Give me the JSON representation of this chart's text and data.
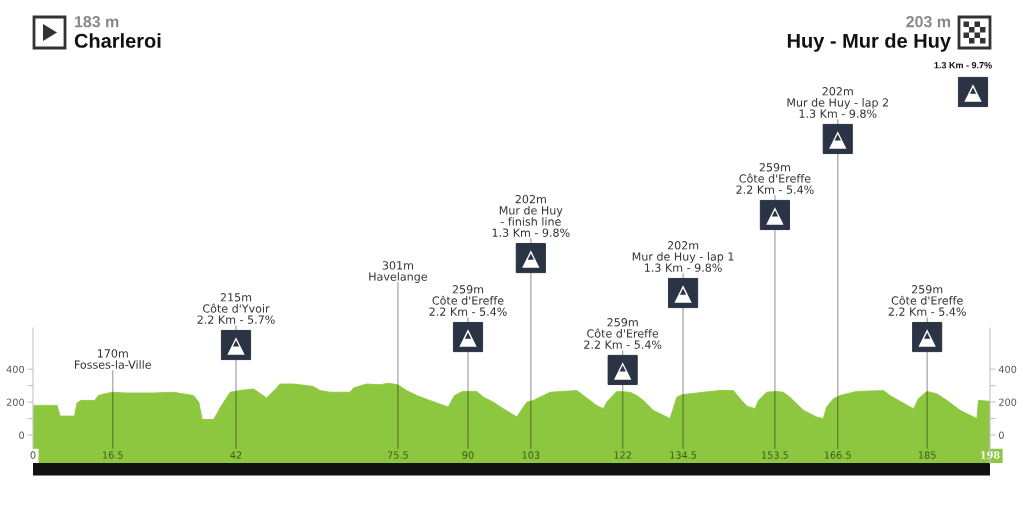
{
  "chart_data": {
    "type": "area",
    "title": "Charleroi",
    "subtitle": "183 m",
    "annotations": [
      "203 m",
      "Huy - Mur de Huy",
      "1.3 Km - 9.7%"
    ],
    "ref_lines": [
      {
        "axis": "x",
        "value": 16.5,
        "label": "170m\nFosses-la-Ville"
      },
      {
        "axis": "x",
        "value": 42,
        "label": "215m\nCôte d'Yvoir\n2.2 Km - 5.7%"
      },
      {
        "axis": "x",
        "value": 75.5,
        "label": "301m\nHavelange"
      },
      {
        "axis": "x",
        "value": 90,
        "label": "259m\nCôte d'Ereffe\n2.2 Km - 5.4%"
      },
      {
        "axis": "x",
        "value": 103,
        "label": "202m\nMur de Huy\n- finish line\n1.3 Km - 9.8%"
      },
      {
        "axis": "x",
        "value": 122,
        "label": "259m\nCôte d'Ereffe\n2.2 Km - 5.4%"
      },
      {
        "axis": "x",
        "value": 134.5,
        "label": "202m\nMur de Huy - lap 1\n1.3 Km - 9.8%"
      },
      {
        "axis": "x",
        "value": 153.5,
        "label": "259m\nCôte d'Ereffe\n2.2 Km - 5.4%"
      },
      {
        "axis": "x",
        "value": 166.5,
        "label": "202m\nMur de Huy - lap 2\n1.3 Km - 9.8%"
      },
      {
        "axis": "x",
        "value": 185,
        "label": "259m\nCôte d'Ereffe\n2.2 Km - 5.4%"
      }
    ],
    "bands": [
      {
        "axis": "y",
        "from": -170,
        "to": 0,
        "color": "#8dc63f"
      }
    ],
    "x": [
      0,
      5.0,
      5.6,
      8.6,
      9.1,
      9.9,
      12.8,
      13.5,
      16.3,
      19.4,
      24.9,
      29.0,
      33.2,
      34.3,
      35.0,
      37.4,
      38.8,
      40.8,
      42.8,
      45.6,
      47.6,
      48.3,
      50.4,
      51.1,
      53.9,
      58.0,
      59.4,
      61.5,
      65.6,
      66.3,
      69.0,
      71.8,
      73.5,
      75.5,
      77.3,
      79.4,
      82.1,
      85.9,
      87.2,
      88.9,
      91.8,
      93.2,
      95.2,
      97.3,
      100.1,
      101.0,
      102.2,
      103.5,
      107.0,
      112.5,
      113.9,
      116.6,
      118.0,
      118.7,
      120.8,
      123.5,
      124.9,
      126.3,
      128.3,
      130.4,
      131.8,
      133.2,
      134.3,
      138.7,
      142.1,
      144.9,
      146.3,
      147.7,
      149.4,
      150.1,
      151.8,
      153.7,
      155.2,
      156.6,
      159.4,
      162.1,
      163.5,
      164.2,
      165.6,
      167.0,
      170.4,
      176.0,
      177.3,
      181.5,
      182.2,
      183.2,
      184.9,
      187.0,
      189.1,
      191.8,
      194.6,
      195.3,
      195.6,
      198
    ],
    "values": [
      180,
      180,
      115,
      115,
      195,
      210,
      210,
      240,
      260,
      255,
      255,
      260,
      240,
      200,
      95,
      95,
      170,
      260,
      270,
      280,
      240,
      225,
      285,
      310,
      310,
      295,
      270,
      260,
      260,
      285,
      310,
      305,
      315,
      305,
      270,
      240,
      210,
      170,
      240,
      265,
      265,
      230,
      200,
      160,
      110,
      150,
      200,
      210,
      260,
      270,
      240,
      180,
      160,
      200,
      265,
      260,
      240,
      210,
      150,
      120,
      100,
      230,
      245,
      260,
      270,
      270,
      220,
      175,
      160,
      210,
      260,
      265,
      260,
      230,
      150,
      110,
      100,
      170,
      220,
      240,
      265,
      270,
      240,
      170,
      160,
      220,
      265,
      250,
      210,
      150,
      110,
      100,
      210,
      205
    ],
    "color": "#8dc63f",
    "xlim": [
      0,
      198
    ],
    "xticks": [
      0,
      16.5,
      42,
      75.5,
      90,
      103,
      122,
      134.5,
      153.5,
      166.5,
      185,
      198
    ],
    "ylim": [
      -170,
      650
    ],
    "yticks": [
      {
        "value": -100,
        "label": null
      },
      0,
      {
        "value": 100,
        "label": null
      },
      200,
      {
        "value": 300,
        "label": null
      },
      400
    ],
    "y2lim": [
      -170,
      650
    ],
    "y2ticks": [
      {
        "value": -100,
        "label": null
      },
      0,
      {
        "value": 100,
        "label": null
      },
      200,
      {
        "value": 300,
        "label": null
      },
      400
    ]
  }
}
